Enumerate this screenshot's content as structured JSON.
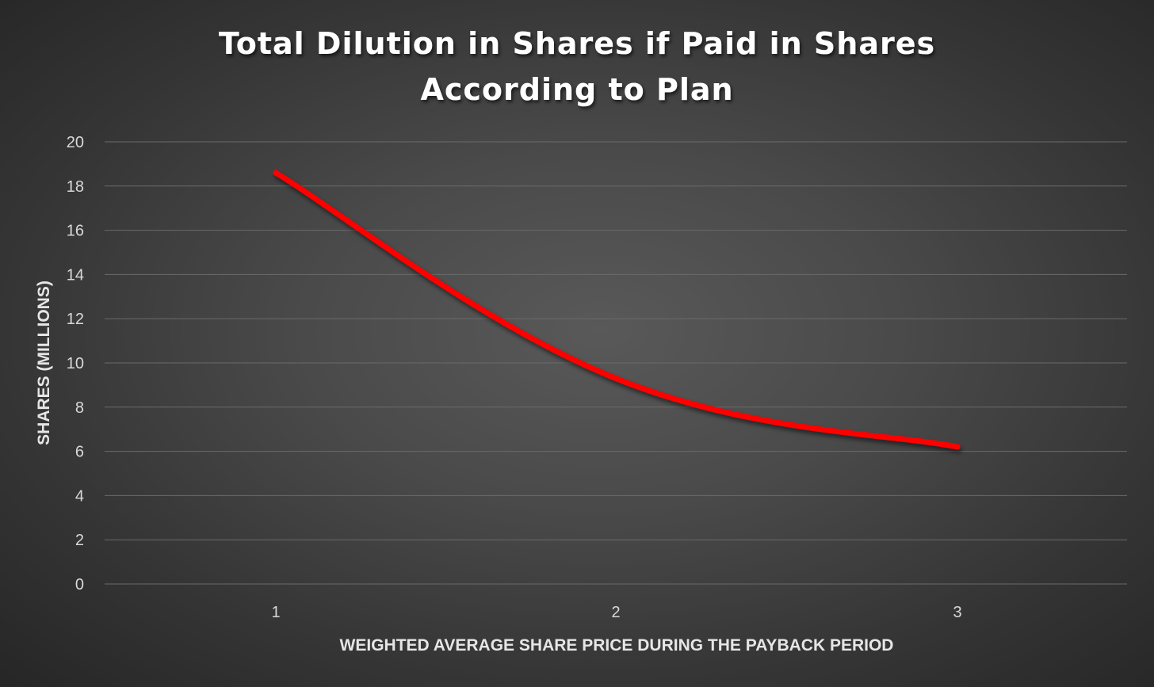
{
  "chart_data": {
    "type": "line",
    "title_lines": [
      "Total Dilution in Shares if Paid in Shares",
      "According to Plan"
    ],
    "xlabel": "WEIGHTED AVERAGE SHARE PRICE DURING THE PAYBACK PERIOD",
    "ylabel": "SHARES (MILLIONS)",
    "categories": [
      "1",
      "2",
      "3"
    ],
    "series": [
      {
        "values": [
          18.6,
          9.3,
          6.2
        ],
        "color": "#ff0000",
        "smooth": true
      }
    ],
    "ylim": [
      0,
      20
    ],
    "yticks": [
      0,
      2,
      4,
      6,
      8,
      10,
      12,
      14,
      16,
      18,
      20
    ],
    "grid": true,
    "legend": "none"
  }
}
